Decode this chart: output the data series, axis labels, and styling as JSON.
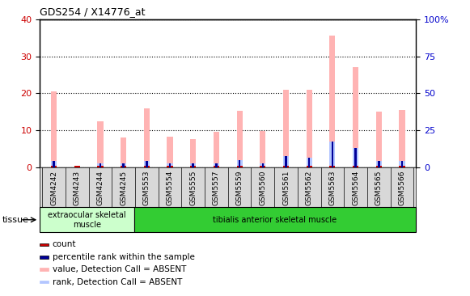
{
  "title": "GDS254 / X14776_at",
  "categories": [
    "GSM4242",
    "GSM4243",
    "GSM4244",
    "GSM4245",
    "GSM5553",
    "GSM5554",
    "GSM5555",
    "GSM5557",
    "GSM5559",
    "GSM5560",
    "GSM5561",
    "GSM5562",
    "GSM5563",
    "GSM5564",
    "GSM5565",
    "GSM5566"
  ],
  "value_absent": [
    20.5,
    0,
    12.5,
    8,
    16,
    8.3,
    7.5,
    9.5,
    15.2,
    9.8,
    21,
    21,
    35.5,
    27,
    15,
    15.5
  ],
  "rank_absent_pct": [
    4.0,
    0,
    2.5,
    2.5,
    4.0,
    2.5,
    2.5,
    2.5,
    5.0,
    2.5,
    7.5,
    6.5,
    17.5,
    13.0,
    4.0,
    4.0
  ],
  "count_val": [
    0.5,
    0.5,
    0.5,
    0.5,
    0.5,
    0.5,
    0.5,
    0.5,
    0.5,
    0.5,
    0.5,
    0.5,
    0.5,
    0.5,
    0.5,
    0.5
  ],
  "percentile_rank_pct": [
    4.0,
    0,
    2.5,
    2.5,
    4.0,
    2.5,
    2.5,
    2.5,
    5.0,
    2.5,
    7.5,
    6.5,
    17.5,
    13.0,
    4.0,
    4.0
  ],
  "ylim_left": [
    0,
    40
  ],
  "ylim_right": [
    0,
    100
  ],
  "yticks_left": [
    0,
    10,
    20,
    30,
    40
  ],
  "yticks_right": [
    0,
    25,
    50,
    75,
    100
  ],
  "color_value_absent": "#ffb3b3",
  "color_rank_absent": "#b3c6ff",
  "color_count": "#cc0000",
  "color_percentile": "#000099",
  "tissue_groups": [
    {
      "label": "extraocular skeletal\nmuscle",
      "start": 0,
      "end": 4,
      "color": "#ccffcc"
    },
    {
      "label": "tibialis anterior skeletal muscle",
      "start": 4,
      "end": 16,
      "color": "#33cc33"
    }
  ],
  "tissue_label": "tissue",
  "background_color": "#ffffff",
  "plot_bg_color": "#ffffff",
  "xtick_bg_color": "#d8d8d8",
  "grid_color": "#000000",
  "tick_label_color_left": "#cc0000",
  "tick_label_color_right": "#0000cc",
  "legend_items": [
    {
      "label": "count",
      "color": "#cc0000"
    },
    {
      "label": "percentile rank within the sample",
      "color": "#000099"
    },
    {
      "label": "value, Detection Call = ABSENT",
      "color": "#ffb3b3"
    },
    {
      "label": "rank, Detection Call = ABSENT",
      "color": "#b3c6ff"
    }
  ]
}
